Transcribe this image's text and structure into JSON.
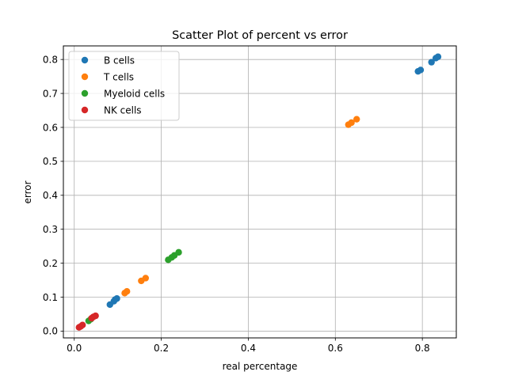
{
  "chart_data": {
    "type": "scatter",
    "title": "Scatter Plot of percent vs error",
    "xlabel": "real percentage",
    "ylabel": "error",
    "xlim": [
      -0.025,
      0.878
    ],
    "ylim": [
      -0.02,
      0.84
    ],
    "xticks": [
      0.0,
      0.2,
      0.4,
      0.6,
      0.8
    ],
    "xtick_labels": [
      "0.0",
      "0.2",
      "0.4",
      "0.6",
      "0.8"
    ],
    "yticks": [
      0.0,
      0.1,
      0.2,
      0.3,
      0.4,
      0.5,
      0.6,
      0.7,
      0.8
    ],
    "ytick_labels": [
      "0.0",
      "0.1",
      "0.2",
      "0.3",
      "0.4",
      "0.5",
      "0.6",
      "0.7",
      "0.8"
    ],
    "grid": true,
    "legend": {
      "position": "top-left"
    },
    "series": [
      {
        "name": "B cells",
        "color": "#1f77b4",
        "points": [
          {
            "x": 0.082,
            "y": 0.078
          },
          {
            "x": 0.091,
            "y": 0.088
          },
          {
            "x": 0.094,
            "y": 0.093
          },
          {
            "x": 0.098,
            "y": 0.096
          },
          {
            "x": 0.79,
            "y": 0.765
          },
          {
            "x": 0.796,
            "y": 0.769
          },
          {
            "x": 0.821,
            "y": 0.792
          },
          {
            "x": 0.831,
            "y": 0.804
          },
          {
            "x": 0.836,
            "y": 0.808
          }
        ]
      },
      {
        "name": "T cells",
        "color": "#ff7f0e",
        "points": [
          {
            "x": 0.116,
            "y": 0.112
          },
          {
            "x": 0.121,
            "y": 0.117
          },
          {
            "x": 0.154,
            "y": 0.148
          },
          {
            "x": 0.164,
            "y": 0.156
          },
          {
            "x": 0.63,
            "y": 0.608
          },
          {
            "x": 0.637,
            "y": 0.614
          },
          {
            "x": 0.649,
            "y": 0.624
          }
        ]
      },
      {
        "name": "Myeloid cells",
        "color": "#2ca02c",
        "points": [
          {
            "x": 0.033,
            "y": 0.03
          },
          {
            "x": 0.038,
            "y": 0.035
          },
          {
            "x": 0.216,
            "y": 0.21
          },
          {
            "x": 0.224,
            "y": 0.217
          },
          {
            "x": 0.23,
            "y": 0.223
          },
          {
            "x": 0.24,
            "y": 0.232
          }
        ]
      },
      {
        "name": "NK cells",
        "color": "#d62728",
        "points": [
          {
            "x": 0.011,
            "y": 0.011
          },
          {
            "x": 0.015,
            "y": 0.014
          },
          {
            "x": 0.019,
            "y": 0.018
          },
          {
            "x": 0.04,
            "y": 0.038
          },
          {
            "x": 0.044,
            "y": 0.042
          },
          {
            "x": 0.049,
            "y": 0.045
          }
        ]
      }
    ]
  }
}
